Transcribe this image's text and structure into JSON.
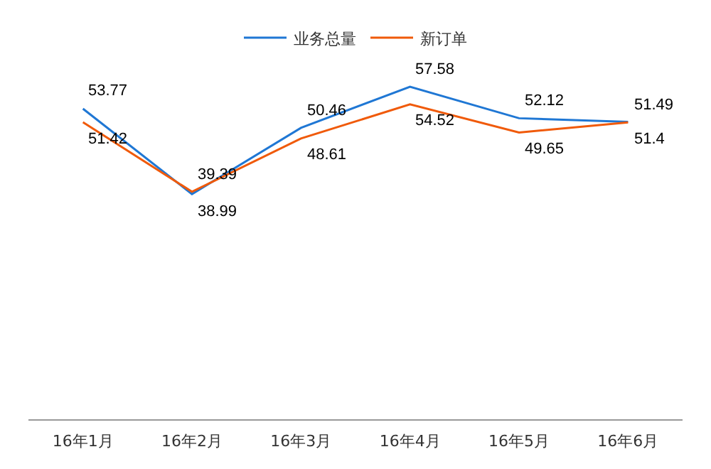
{
  "chart_data": {
    "type": "line",
    "categories": [
      "16年1月",
      "16年2月",
      "16年3月",
      "16年4月",
      "16年5月",
      "16年6月"
    ],
    "series": [
      {
        "name": "业务总量",
        "color": "#1f77d4",
        "values": [
          53.77,
          38.99,
          50.46,
          57.58,
          52.12,
          51.49
        ]
      },
      {
        "name": "新订单",
        "color": "#f05a0a",
        "values": [
          51.42,
          39.39,
          48.61,
          54.52,
          49.65,
          51.4
        ]
      }
    ],
    "tick_labels": "x",
    "legend": "top",
    "data_labels": true,
    "marker": "none",
    "line_style": "solid"
  }
}
